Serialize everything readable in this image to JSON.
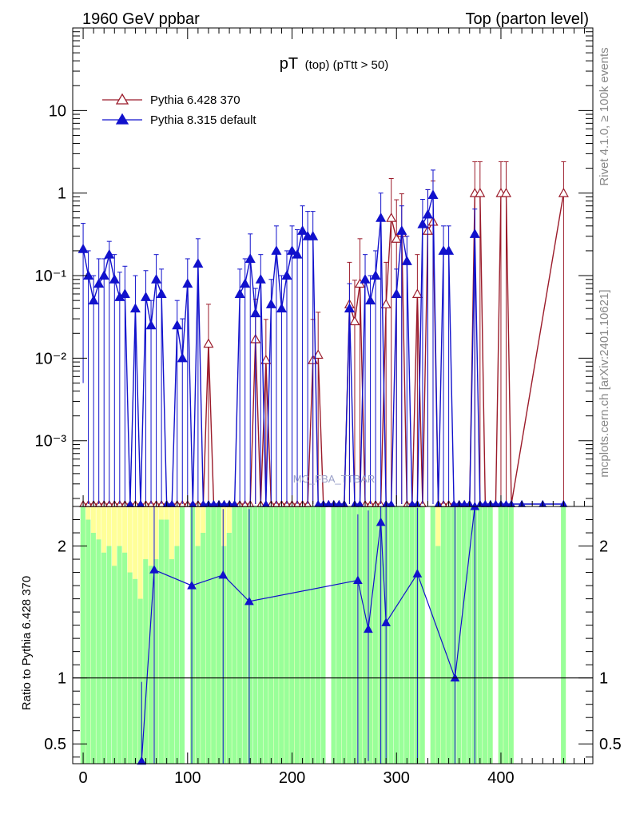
{
  "header": {
    "left_title": "1960 GeV ppbar",
    "right_title": "Top (parton level)"
  },
  "side_labels": {
    "rivet": "Rivet 4.1.0, ≥ 100k events",
    "mcplots": "mcplots.cern.ch [arXiv:2401.10621]"
  },
  "watermark": "MC_FBA_TTBAR",
  "colors": {
    "pythia6": "#9b1b2a",
    "pythia8": "#1111cc",
    "band_green": "#99ff99",
    "band_yellow": "#ffff99"
  },
  "chart_data": [
    {
      "type": "line",
      "title": "pT (top) (pTtt > 50)",
      "title_main": "pT",
      "title_sub": "(top) (pTtt > 50)",
      "xlabel": "",
      "ylabel": "",
      "yscale": "log",
      "ylim": [
        0.00016,
        100
      ],
      "xlim": [
        -10,
        488
      ],
      "ytick_labels": [
        {
          "value": 10,
          "label": "10"
        },
        {
          "value": 1,
          "label": "1"
        },
        {
          "value": 0.1,
          "label": "10⁻¹"
        },
        {
          "value": 0.01,
          "label": "10⁻²"
        },
        {
          "value": 0.001,
          "label": "10⁻³"
        }
      ],
      "legend": [
        "Pythia 6.428 370",
        "Pythia 8.315 default"
      ],
      "legend_position": "top-left",
      "series": [
        {
          "name": "Pythia 6.428 370",
          "marker": "open-triangle",
          "x": [
            0,
            5,
            10,
            15,
            20,
            25,
            30,
            35,
            40,
            45,
            50,
            55,
            60,
            65,
            70,
            75,
            80,
            85,
            90,
            95,
            100,
            105,
            110,
            115,
            120,
            125,
            130,
            135,
            140,
            145,
            150,
            155,
            160,
            165,
            170,
            175,
            180,
            185,
            190,
            195,
            200,
            205,
            210,
            215,
            220,
            225,
            230,
            235,
            240,
            245,
            250,
            255,
            260,
            265,
            270,
            275,
            280,
            285,
            290,
            295,
            300,
            305,
            310,
            315,
            320,
            325,
            330,
            335,
            340,
            345,
            350,
            355,
            360,
            365,
            370,
            375,
            380,
            385,
            390,
            395,
            400,
            405,
            410,
            460
          ],
          "y": [
            0,
            0,
            0,
            0,
            0,
            0,
            0,
            0,
            0,
            0,
            0,
            0,
            0,
            0,
            0,
            0,
            0,
            0,
            0,
            0,
            0,
            0,
            0,
            0,
            0.015,
            0,
            0,
            0,
            0,
            0,
            0,
            0,
            0,
            0.017,
            0,
            0.0095,
            0,
            0,
            0,
            0,
            0,
            0,
            0,
            0,
            0.0095,
            0.011,
            0,
            0,
            0,
            0,
            0,
            0.045,
            0.028,
            0.08,
            0,
            0,
            0,
            0,
            0.045,
            0.5,
            0.28,
            0.33,
            0,
            0,
            0.06,
            0,
            0.35,
            0.45,
            0,
            0,
            0,
            0,
            0,
            0,
            0,
            1.0,
            1.0,
            0,
            0,
            0,
            1.0,
            1.0,
            0,
            1.0
          ],
          "err_low": [
            0,
            0,
            0,
            0,
            0,
            0,
            0,
            0,
            0,
            0,
            0,
            0,
            0,
            0,
            0,
            0,
            0,
            0,
            0,
            0,
            0,
            0,
            0,
            0,
            0.015,
            0,
            0,
            0,
            0,
            0,
            0,
            0,
            0,
            0.017,
            0,
            0.0095,
            0,
            0,
            0,
            0,
            0,
            0,
            0,
            0,
            0.0095,
            0.011,
            0,
            0,
            0,
            0,
            0,
            0.045,
            0.028,
            0.08,
            0,
            0,
            0,
            0,
            0.045,
            0.5,
            0.28,
            0.33,
            0,
            0,
            0.06,
            0,
            0.35,
            0.45,
            0,
            0,
            0,
            0,
            0,
            0,
            0,
            1.0,
            1.0,
            0,
            0,
            0,
            1.0,
            1.0,
            0,
            1.0
          ],
          "err_high": [
            0,
            0,
            0,
            0,
            0,
            0,
            0,
            0,
            0,
            0,
            0,
            0,
            0,
            0,
            0,
            0,
            0,
            0,
            0,
            0,
            0,
            0,
            0,
            0,
            0.03,
            0,
            0,
            0,
            0,
            0,
            0,
            0,
            0,
            0.035,
            0,
            0.02,
            0,
            0,
            0,
            0,
            0,
            0,
            0,
            0,
            0.02,
            0.025,
            0,
            0,
            0,
            0,
            0,
            0.1,
            0.06,
            0.2,
            0,
            0,
            0,
            0,
            0.1,
            1.0,
            0.55,
            0.65,
            0,
            0,
            0.12,
            0,
            0.75,
            0.95,
            0,
            0,
            0,
            0,
            0,
            0,
            0,
            1.4,
            1.4,
            0,
            0,
            0,
            1.4,
            1.4,
            0,
            1.4
          ]
        },
        {
          "name": "Pythia 8.315 default",
          "marker": "filled-triangle",
          "x": [
            0,
            5,
            10,
            15,
            20,
            25,
            30,
            35,
            40,
            45,
            50,
            55,
            60,
            65,
            70,
            75,
            80,
            85,
            90,
            95,
            100,
            105,
            110,
            115,
            120,
            125,
            130,
            135,
            140,
            145,
            150,
            155,
            160,
            165,
            170,
            175,
            180,
            185,
            190,
            195,
            200,
            205,
            210,
            215,
            220,
            225,
            230,
            235,
            240,
            245,
            250,
            255,
            260,
            265,
            270,
            275,
            280,
            285,
            290,
            295,
            300,
            305,
            310,
            315,
            320,
            325,
            330,
            335,
            340,
            345,
            350,
            355,
            360,
            365,
            370,
            375,
            380,
            385,
            390,
            395,
            400,
            405,
            410,
            420,
            440,
            460
          ],
          "y": [
            0.21,
            0.1,
            0.05,
            0.08,
            0.1,
            0.18,
            0.09,
            0.055,
            0.06,
            0,
            0.04,
            0,
            0.055,
            0.025,
            0.09,
            0.06,
            0,
            0,
            0.025,
            0.01,
            0.08,
            0,
            0.14,
            0,
            0,
            0,
            0,
            0,
            0,
            0,
            0.06,
            0.08,
            0.16,
            0.035,
            0.09,
            0,
            0.045,
            0.2,
            0.04,
            0.1,
            0.2,
            0.18,
            0.35,
            0.3,
            0.3,
            0,
            0,
            0,
            0,
            0,
            0,
            0.04,
            0,
            0,
            0.09,
            0.05,
            0.1,
            0.5,
            0,
            0,
            0.06,
            0.35,
            0.15,
            0,
            0,
            0.42,
            0.55,
            0.95,
            0,
            0.2,
            0.2,
            0,
            0,
            0,
            0,
            0.32,
            0,
            0,
            0,
            0,
            0,
            0,
            0,
            0,
            0,
            0
          ],
          "err_low": [
            0.205,
            0.1,
            0.05,
            0.08,
            0.1,
            0.18,
            0.09,
            0.055,
            0.06,
            0,
            0.04,
            0,
            0.055,
            0.025,
            0.09,
            0.06,
            0,
            0,
            0.025,
            0.01,
            0.08,
            0,
            0.14,
            0,
            0,
            0,
            0,
            0,
            0,
            0,
            0.06,
            0.08,
            0.16,
            0.035,
            0.09,
            0,
            0.045,
            0.2,
            0.04,
            0.1,
            0.2,
            0.18,
            0.35,
            0.3,
            0.3,
            0,
            0,
            0,
            0,
            0,
            0,
            0.04,
            0,
            0,
            0.09,
            0.05,
            0.1,
            0.5,
            0,
            0,
            0.06,
            0.35,
            0.15,
            0,
            0,
            0.42,
            0.55,
            0.95,
            0,
            0.2,
            0.2,
            0,
            0,
            0,
            0,
            0.32,
            0,
            0,
            0,
            0,
            0,
            0,
            0,
            0,
            0,
            0
          ],
          "err_high": [
            0.22,
            0.1,
            0.05,
            0.08,
            0.06,
            0.08,
            0.09,
            0.055,
            0.07,
            0,
            0.06,
            0,
            0.06,
            0.025,
            0.09,
            0.06,
            0,
            0,
            0.025,
            0.02,
            0.08,
            0,
            0.14,
            0,
            0,
            0,
            0,
            0,
            0,
            0,
            0.06,
            0.08,
            0.16,
            0.035,
            0.09,
            0,
            0.045,
            0.2,
            0.06,
            0.1,
            0.2,
            0.18,
            0.35,
            0.3,
            0.3,
            0,
            0,
            0,
            0,
            0,
            0,
            0.04,
            0,
            0,
            0.09,
            0.05,
            0.1,
            0.5,
            0,
            0,
            0.06,
            0.35,
            0.15,
            0,
            0,
            0.42,
            0.55,
            0.95,
            0,
            0.2,
            0.2,
            0,
            0,
            0,
            0,
            0.32,
            0,
            0,
            0,
            0,
            0,
            0,
            0,
            0,
            0,
            0
          ]
        }
      ]
    },
    {
      "type": "line",
      "title": "",
      "xlabel": "",
      "ylabel": "Ratio to Pythia 6.428 370",
      "ylim": [
        0.35,
        2.3
      ],
      "xlim": [
        -10,
        488
      ],
      "yticks": [
        0.5,
        1,
        2
      ],
      "ytick_labels": [
        "0.5",
        "1",
        "2"
      ],
      "xticks": [
        0,
        100,
        200,
        300,
        400
      ],
      "xtick_labels": [
        "0",
        "100",
        "200",
        "300",
        "400"
      ],
      "reference_line": 1,
      "band": {
        "x": [
          0,
          5,
          10,
          15,
          20,
          25,
          30,
          35,
          40,
          45,
          50,
          55,
          60,
          65,
          70,
          75,
          80,
          85,
          90,
          95,
          100,
          105,
          110,
          115,
          120,
          125,
          130,
          135,
          140,
          145,
          150,
          155,
          160,
          165,
          170,
          175,
          180,
          185,
          190,
          195,
          200,
          205,
          210,
          215,
          220,
          225,
          230,
          235,
          240,
          245,
          250,
          255,
          260,
          265,
          270,
          275,
          280,
          285,
          290,
          295,
          300,
          305,
          310,
          315,
          320,
          325,
          330,
          335,
          340,
          345,
          350,
          355,
          360,
          365,
          370,
          375,
          380,
          385,
          390,
          395,
          400,
          405,
          410,
          460
        ],
        "green_high": [
          2.3,
          2.2,
          2.1,
          2.05,
          1.95,
          2.0,
          1.85,
          2.0,
          1.95,
          1.8,
          1.75,
          1.6,
          1.9,
          1.85,
          1.9,
          2.2,
          2.2,
          1.9,
          2.0,
          2.3,
          0,
          2.3,
          2.0,
          2.1,
          2.3,
          2.3,
          2.3,
          2.0,
          2.1,
          2.3,
          2.3,
          2.3,
          2.3,
          2.3,
          2.3,
          2.3,
          2.3,
          2.3,
          2.3,
          2.3,
          2.3,
          2.3,
          2.3,
          2.3,
          2.3,
          2.3,
          2.3,
          0,
          2.3,
          2.3,
          2.3,
          2.3,
          2.3,
          2.3,
          2.3,
          2.3,
          2.3,
          2.3,
          2.3,
          2.3,
          2.3,
          2.3,
          2.3,
          2.3,
          2.3,
          2.3,
          0,
          2.3,
          2.0,
          2.3,
          2.3,
          2.3,
          2.3,
          2.3,
          2.3,
          2.3,
          2.3,
          2.3,
          2.3,
          0,
          2.3,
          2.3,
          2.3,
          2.3
        ],
        "yellow_high": [
          2.3,
          2.3,
          2.3,
          2.3,
          2.3,
          2.3,
          2.3,
          2.3,
          2.3,
          2.3,
          2.3,
          2.3,
          2.3,
          2.3,
          2.3,
          2.3,
          2.3,
          2.3,
          2.3,
          2.3,
          0,
          2.3,
          2.3,
          2.3,
          2.3,
          2.3,
          2.3,
          2.3,
          2.3,
          2.3,
          2.3,
          2.3,
          2.3,
          2.3,
          2.3,
          2.3,
          2.3,
          2.3,
          2.3,
          2.3,
          2.3,
          2.3,
          2.3,
          2.3,
          2.3,
          2.3,
          2.3,
          0,
          2.3,
          2.3,
          2.3,
          2.3,
          2.3,
          2.3,
          2.3,
          2.3,
          2.3,
          2.3,
          2.3,
          2.3,
          2.3,
          2.3,
          2.3,
          2.3,
          2.3,
          2.3,
          0,
          2.3,
          2.3,
          2.3,
          2.3,
          2.3,
          2.3,
          2.3,
          2.3,
          2.3,
          2.3,
          2.3,
          2.3,
          0,
          2.3,
          2.3,
          2.3,
          2.3
        ]
      },
      "series": [
        {
          "name": "Pythia 8.315 default",
          "x": [
            56,
            68,
            104,
            134,
            159,
            263,
            273,
            285,
            290,
            320,
            356,
            375
          ],
          "y": [
            0.37,
            1.82,
            1.7,
            1.78,
            1.58,
            1.74,
            1.37,
            2.18,
            1.42,
            1.79,
            1.0,
            2.3
          ],
          "err_low": [
            0.02,
            1.5,
            1.4,
            1.45,
            1.25,
            1.4,
            1.0,
            1.85,
            1.1,
            1.45,
            0.65,
            2.0
          ],
          "err_high": [
            0.6,
            0.5,
            0.6,
            0.5,
            0.7,
            0.5,
            0.9,
            0.12,
            0.9,
            0.5,
            1.3,
            0.0
          ]
        }
      ]
    }
  ]
}
